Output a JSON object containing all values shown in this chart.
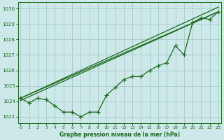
{
  "xlabel": "Graphe pression niveau de la mer (hPa)",
  "background_color": "#cce8e8",
  "grid_color": "#aacece",
  "line_color": "#1a6b1a",
  "text_color": "#1a6b1a",
  "ylim": [
    1022.6,
    1030.4
  ],
  "xlim": [
    -0.3,
    23.3
  ],
  "yticks": [
    1023,
    1024,
    1025,
    1026,
    1027,
    1028,
    1029,
    1030
  ],
  "xticks": [
    0,
    1,
    2,
    3,
    4,
    5,
    6,
    7,
    8,
    9,
    10,
    11,
    12,
    13,
    14,
    15,
    16,
    17,
    18,
    19,
    20,
    21,
    22,
    23
  ],
  "series_main": {
    "x": [
      0,
      1,
      2,
      3,
      4,
      5,
      6,
      7,
      8,
      9,
      10,
      11,
      12,
      13,
      14,
      15,
      16,
      17,
      18,
      19,
      20,
      21,
      22,
      23
    ],
    "y": [
      1024.2,
      1023.9,
      1024.2,
      1024.1,
      1023.7,
      1023.3,
      1023.3,
      1023.0,
      1023.3,
      1023.3,
      1024.4,
      1024.9,
      1025.4,
      1025.6,
      1025.6,
      1026.0,
      1026.3,
      1026.5,
      1027.6,
      1027.0,
      1029.1,
      1029.4,
      1029.3,
      1029.8
    ]
  },
  "trend_line1": {
    "x": [
      0,
      23
    ],
    "y": [
      1024.2,
      1029.8
    ]
  },
  "trend_line2": {
    "x": [
      0,
      23
    ],
    "y": [
      1024.2,
      1030.1
    ]
  },
  "trend_line3": {
    "x": [
      0,
      23
    ],
    "y": [
      1024.05,
      1029.8
    ]
  },
  "marker": "+",
  "markersize": 4,
  "linewidth": 0.9
}
